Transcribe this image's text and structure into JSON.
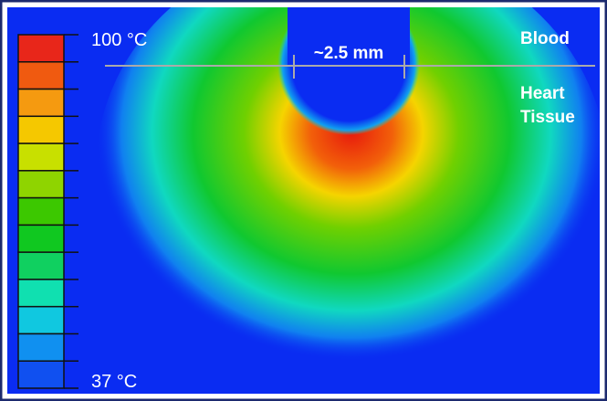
{
  "scale": {
    "max_label": "100 °C",
    "min_label": "37 °C"
  },
  "dimension": "~2.5 mm",
  "regions": {
    "blood": "Blood",
    "tissue": [
      "Heart",
      "Tissue"
    ]
  }
}
